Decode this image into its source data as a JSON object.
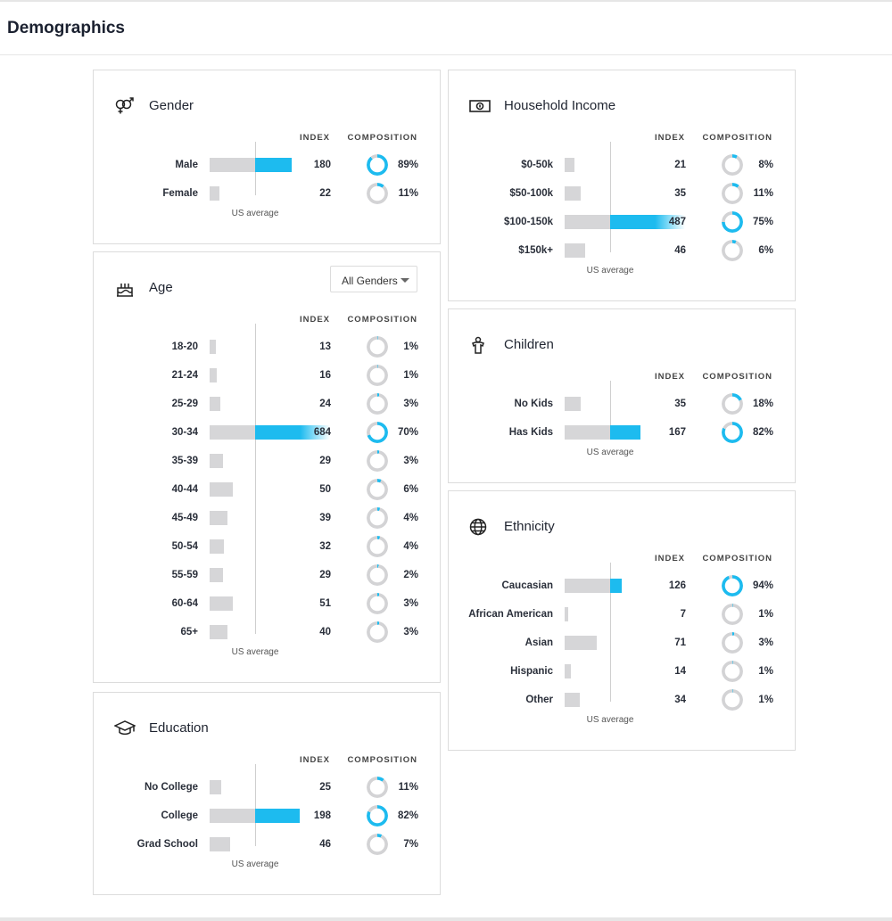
{
  "page_title": "Demographics",
  "columns": {
    "index": "INDEX",
    "composition": "COMPOSITION"
  },
  "avg_label": "US average",
  "colors": {
    "accent": "#1dbbef",
    "bar_gray": "#d6d6d8"
  },
  "cards": {
    "gender": {
      "title": "Gender",
      "icon": "gender-icon",
      "rows": [
        {
          "label": "Male",
          "index": 180,
          "composition": "89%"
        },
        {
          "label": "Female",
          "index": 22,
          "composition": "11%"
        }
      ]
    },
    "age": {
      "title": "Age",
      "icon": "birthday-cake-icon",
      "filter": "All Genders",
      "rows": [
        {
          "label": "18-20",
          "index": 13,
          "composition": "1%"
        },
        {
          "label": "21-24",
          "index": 16,
          "composition": "1%"
        },
        {
          "label": "25-29",
          "index": 24,
          "composition": "3%"
        },
        {
          "label": "30-34",
          "index": 684,
          "composition": "70%"
        },
        {
          "label": "35-39",
          "index": 29,
          "composition": "3%"
        },
        {
          "label": "40-44",
          "index": 50,
          "composition": "6%"
        },
        {
          "label": "45-49",
          "index": 39,
          "composition": "4%"
        },
        {
          "label": "50-54",
          "index": 32,
          "composition": "4%"
        },
        {
          "label": "55-59",
          "index": 29,
          "composition": "2%"
        },
        {
          "label": "60-64",
          "index": 51,
          "composition": "3%"
        },
        {
          "label": "65+",
          "index": 40,
          "composition": "3%"
        }
      ]
    },
    "education": {
      "title": "Education",
      "icon": "graduation-cap-icon",
      "rows": [
        {
          "label": "No College",
          "index": 25,
          "composition": "11%"
        },
        {
          "label": "College",
          "index": 198,
          "composition": "82%"
        },
        {
          "label": "Grad School",
          "index": 46,
          "composition": "7%"
        }
      ]
    },
    "income": {
      "title": "Household Income",
      "icon": "money-icon",
      "rows": [
        {
          "label": "$0-50k",
          "index": 21,
          "composition": "8%"
        },
        {
          "label": "$50-100k",
          "index": 35,
          "composition": "11%"
        },
        {
          "label": "$100-150k",
          "index": 487,
          "composition": "75%"
        },
        {
          "label": "$150k+",
          "index": 46,
          "composition": "6%"
        }
      ]
    },
    "children": {
      "title": "Children",
      "icon": "child-icon",
      "rows": [
        {
          "label": "No Kids",
          "index": 35,
          "composition": "18%"
        },
        {
          "label": "Has Kids",
          "index": 167,
          "composition": "82%"
        }
      ]
    },
    "ethnicity": {
      "title": "Ethnicity",
      "icon": "globe-icon",
      "rows": [
        {
          "label": "Caucasian",
          "index": 126,
          "composition": "94%"
        },
        {
          "label": "African American",
          "index": 7,
          "composition": "1%"
        },
        {
          "label": "Asian",
          "index": 71,
          "composition": "3%"
        },
        {
          "label": "Hispanic",
          "index": 14,
          "composition": "1%"
        },
        {
          "label": "Other",
          "index": 34,
          "composition": "1%"
        }
      ]
    }
  }
}
